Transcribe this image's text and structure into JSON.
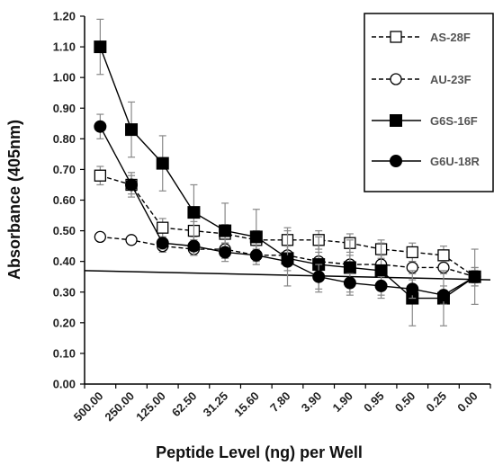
{
  "chart_data": {
    "type": "line",
    "title": "",
    "xlabel": "Peptide Level (ng) per Well",
    "ylabel": "Absorbance (405nm)",
    "categories": [
      "500.00",
      "250.00",
      "125.00",
      "62.50",
      "31.25",
      "15.60",
      "7.80",
      "3.90",
      "1.90",
      "0.95",
      "0.50",
      "0.25",
      "0.00"
    ],
    "ylim": [
      0,
      1.2
    ],
    "yticks": [
      "0.00",
      "0.10",
      "0.20",
      "0.30",
      "0.40",
      "0.50",
      "0.60",
      "0.70",
      "0.80",
      "0.90",
      "1.00",
      "1.10",
      "1.20"
    ],
    "grid": false,
    "legend_position": "top-right",
    "series": [
      {
        "name": "AS-28F",
        "marker": "open-square",
        "dashed": true,
        "values": [
          0.68,
          0.65,
          0.51,
          0.5,
          0.49,
          0.47,
          0.47,
          0.47,
          0.46,
          0.44,
          0.43,
          0.42,
          0.35
        ],
        "errors": [
          0.03,
          0.03,
          0.03,
          0.03,
          0.03,
          0.03,
          0.04,
          0.03,
          0.03,
          0.03,
          0.03,
          0.03,
          0.03
        ]
      },
      {
        "name": "AU-23F",
        "marker": "open-circle",
        "dashed": true,
        "values": [
          0.48,
          0.47,
          0.45,
          0.44,
          0.44,
          0.42,
          0.42,
          0.4,
          0.39,
          0.39,
          0.38,
          0.38,
          0.35
        ],
        "errors": [
          0.0,
          0.0,
          0.02,
          0.02,
          0.02,
          0.02,
          0.03,
          0.03,
          0.03,
          0.03,
          0.02,
          0.02,
          0.02
        ]
      },
      {
        "name": "G6S-16F",
        "marker": "filled-square",
        "dashed": false,
        "values": [
          1.1,
          0.83,
          0.72,
          0.56,
          0.5,
          0.48,
          0.41,
          0.39,
          0.38,
          0.37,
          0.28,
          0.28,
          0.35
        ],
        "errors": [
          0.09,
          0.09,
          0.09,
          0.09,
          0.09,
          0.09,
          0.09,
          0.09,
          0.09,
          0.09,
          0.09,
          0.09,
          0.09
        ]
      },
      {
        "name": "G6U-18R",
        "marker": "filled-circle",
        "dashed": false,
        "values": [
          0.84,
          0.65,
          0.46,
          0.45,
          0.43,
          0.42,
          0.4,
          0.35,
          0.33,
          0.32,
          0.31,
          0.29,
          0.35
        ],
        "errors": [
          0.04,
          0.04,
          0.02,
          0.03,
          0.03,
          0.03,
          0.03,
          0.04,
          0.03,
          0.03,
          0.03,
          0.03,
          0.03
        ]
      }
    ],
    "reference_line": {
      "y_start": 0.37,
      "y_end": 0.34
    }
  }
}
